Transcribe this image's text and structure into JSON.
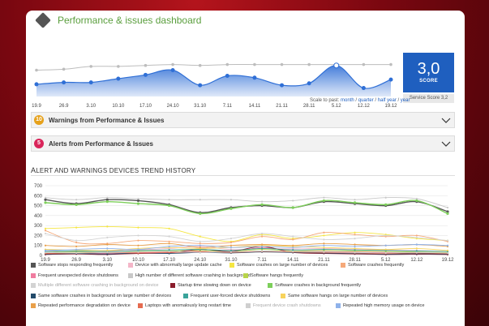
{
  "header": {
    "title": "Performance & issues dashboard",
    "logo_icon": "diamond-logo-icon"
  },
  "score": {
    "value": "3,0",
    "label": "SCORE",
    "caption": "Service Score 3,2"
  },
  "scale": {
    "prefix": "Scale to past:",
    "options": [
      "month",
      "quarter",
      "half year",
      "year"
    ]
  },
  "accordions": [
    {
      "count": "10",
      "title": "Warnings from Performance & Issues",
      "badge_color": "#e6a11a"
    },
    {
      "count": "5",
      "title": "Alerts from Performance & Issues",
      "badge_color": "#d9245a"
    }
  ],
  "trend_title": {
    "first": "A",
    "rest": "LERT AND WARNINGS DEVICES TREND HISTORY"
  },
  "chart_data": [
    {
      "type": "area",
      "categories": [
        "19.9",
        "26.9",
        "3.10",
        "10.10",
        "17.10",
        "24.10",
        "31.10",
        "7.11",
        "14.11",
        "21.11",
        "28.11",
        "5.12",
        "12.12",
        "19.12"
      ],
      "ylim": [
        0,
        10
      ],
      "grid": false,
      "series": [
        {
          "values": [
            2.6,
            3.0,
            3.0,
            3.8,
            4.6,
            5.6,
            2.4,
            4.4,
            4.0,
            2.4,
            2.8,
            6.6,
            1.8,
            3.6
          ],
          "color": "#2f6fd6"
        },
        {
          "values": [
            5.6,
            5.8,
            6.4,
            6.4,
            6.6,
            6.8,
            6.6,
            6.8,
            6.8,
            6.8,
            6.8,
            6.8,
            6.8,
            6.8
          ],
          "color": "#bdbdbd"
        }
      ]
    },
    {
      "type": "line",
      "categories": [
        "19.9",
        "26.9",
        "3.10",
        "10.10",
        "17.10",
        "24.10",
        "31.10",
        "7.11",
        "14.11",
        "21.11",
        "28.11",
        "5.12",
        "12.12",
        "19.12"
      ],
      "yticks": [
        0,
        100,
        200,
        300,
        400,
        500,
        600,
        700
      ],
      "ylim": [
        0,
        700
      ],
      "grid": true,
      "series": [
        {
          "name": "Software stops responding frequently",
          "color": "#555555",
          "values": [
            560,
            520,
            560,
            550,
            510,
            430,
            480,
            500,
            480,
            540,
            520,
            500,
            540,
            440
          ]
        },
        {
          "name": "Device with abnormally large update cache",
          "color": "#f4b6c8",
          "values": [
            50,
            40,
            45,
            55,
            70,
            90,
            60,
            70,
            65,
            70,
            60,
            55,
            50,
            40
          ]
        },
        {
          "name": "Software crashes on large number of devices",
          "color": "#f5e642",
          "values": [
            270,
            280,
            290,
            280,
            270,
            190,
            140,
            210,
            170,
            200,
            230,
            210,
            170,
            150
          ]
        },
        {
          "name": "Software crashes frequently",
          "color": "#f5a97a",
          "values": [
            250,
            130,
            120,
            150,
            140,
            120,
            130,
            190,
            160,
            230,
            210,
            190,
            200,
            140
          ]
        },
        {
          "name": "Frequent unexpected device shutdowns",
          "color": "#f07ca0",
          "values": [
            20,
            25,
            20,
            30,
            35,
            40,
            30,
            80,
            45,
            40,
            35,
            30,
            25,
            20
          ]
        },
        {
          "name": "High number of different software crashing in background",
          "color": "#c8c8c8",
          "values": [
            580,
            560,
            580,
            570,
            560,
            560,
            560,
            540,
            550,
            580,
            560,
            580,
            570,
            480
          ]
        },
        {
          "name": "Software hangs frequently",
          "color": "#b8d44a",
          "values": [
            30,
            35,
            30,
            40,
            45,
            50,
            40,
            60,
            45,
            50,
            45,
            40,
            35,
            30
          ]
        },
        {
          "name": "Multiple different software crashing in background on device",
          "color": "#d3d3d3",
          "values": [
            220,
            150,
            180,
            200,
            190,
            140,
            170,
            220,
            190,
            160,
            170,
            200,
            180,
            150
          ]
        },
        {
          "name": "Startup time slowing down on device",
          "color": "#8a1c2b",
          "values": [
            10,
            15,
            10,
            20,
            25,
            60,
            40,
            90,
            30,
            20,
            15,
            10,
            12,
            10
          ]
        },
        {
          "name": "Software crashes in background frequently",
          "color": "#7dcf5a",
          "values": [
            530,
            510,
            540,
            520,
            500,
            420,
            470,
            510,
            480,
            550,
            530,
            510,
            550,
            420
          ]
        },
        {
          "name": "Same software crashes in background on large number of devices",
          "color": "#234a6a",
          "values": [
            15,
            20,
            15,
            25,
            20,
            30,
            25,
            35,
            30,
            25,
            20,
            15,
            18,
            15
          ]
        },
        {
          "name": "Frequent user-forced device shutdowns",
          "color": "#3aa39a",
          "values": [
            40,
            45,
            40,
            50,
            55,
            60,
            50,
            70,
            55,
            60,
            55,
            50,
            45,
            40
          ]
        },
        {
          "name": "Same software hangs on large number of devices",
          "color": "#f7d35c",
          "values": [
            60,
            55,
            50,
            70,
            80,
            70,
            80,
            100,
            90,
            80,
            70,
            60,
            70,
            50
          ]
        },
        {
          "name": "Repeated performance degradation on device",
          "color": "#e9a04a",
          "values": [
            100,
            90,
            110,
            100,
            120,
            80,
            100,
            110,
            100,
            120,
            110,
            100,
            110,
            90
          ]
        },
        {
          "name": "Laptops with anomalously long restart time",
          "color": "#e56b50",
          "values": [
            20,
            25,
            30,
            25,
            30,
            35,
            30,
            40,
            35,
            30,
            25,
            20,
            25,
            20
          ]
        },
        {
          "name": "Frequent device crash shutdowns",
          "color": "#cfcfcf",
          "values": [
            30,
            25,
            30,
            35,
            40,
            30,
            35,
            45,
            40,
            35,
            30,
            25,
            30,
            25
          ]
        },
        {
          "name": "Repeated high memory usage on device",
          "color": "#8fb2ea",
          "values": [
            50,
            60,
            70,
            60,
            90,
            100,
            80,
            90,
            80,
            100,
            90,
            100,
            110,
            100
          ]
        }
      ],
      "legend_muted": [
        7,
        15
      ]
    }
  ]
}
